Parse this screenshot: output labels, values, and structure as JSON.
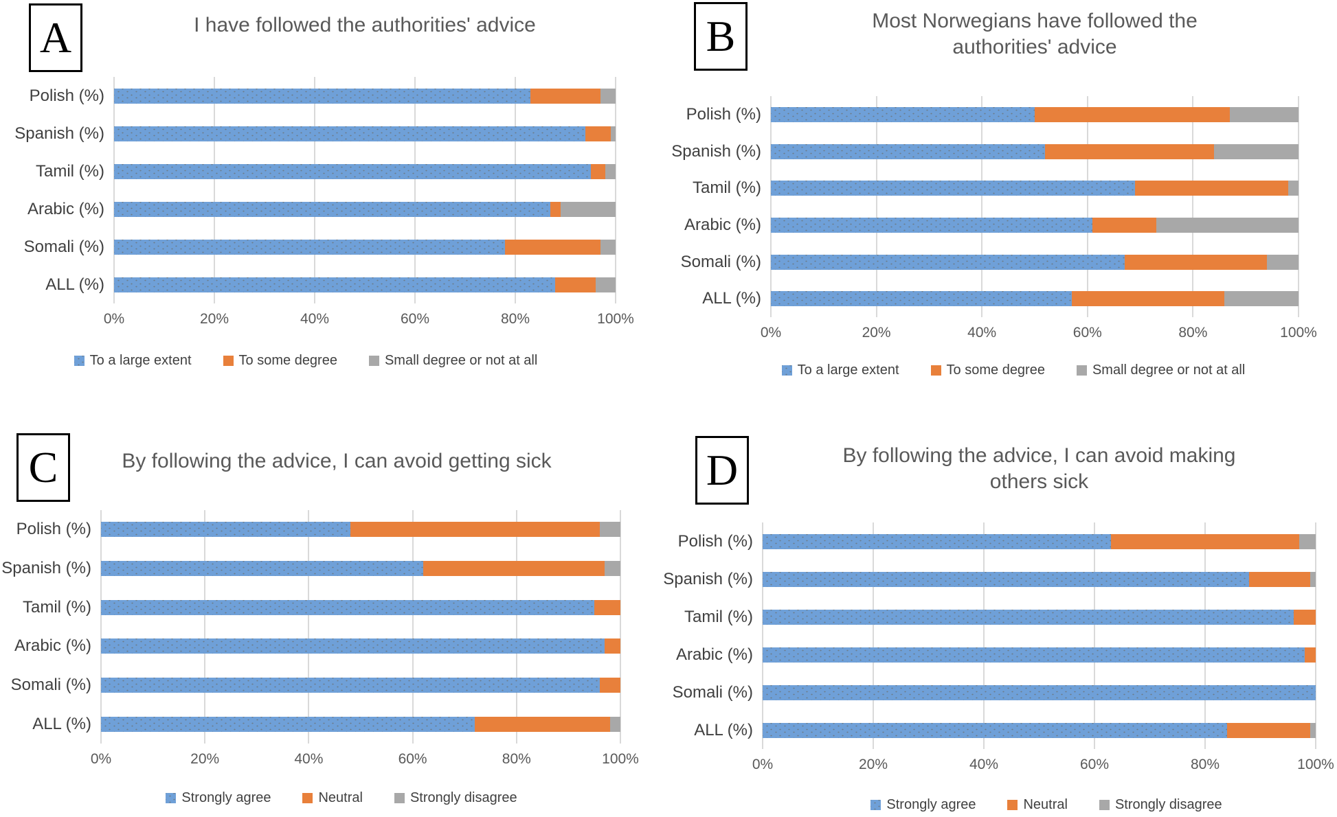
{
  "colors": {
    "blue": "#6FA0D8",
    "orange": "#E8803B",
    "gray": "#A8A8A8",
    "title_text": "#595959",
    "axis_text": "#595959",
    "gridline": "#D9D9D9"
  },
  "chart_data": [
    {
      "panel": "A",
      "type": "bar",
      "stacked": true,
      "orientation": "horizontal",
      "title": "I have followed the authorities' advice",
      "title_lines": [
        "I have followed the authorities' advice"
      ],
      "categories": [
        "Polish  (%)",
        "Spanish  (%)",
        "Tamil  (%)",
        "Arabic (%)",
        "Somali  (%)",
        "ALL  (%)"
      ],
      "series": [
        {
          "name": "To a large extent",
          "color": "blue",
          "values": [
            83,
            94,
            95,
            87,
            78,
            88
          ]
        },
        {
          "name": "To some degree",
          "color": "orange",
          "values": [
            14,
            5,
            3,
            2,
            19,
            8
          ]
        },
        {
          "name": "Small degree or not at all",
          "color": "gray",
          "values": [
            3,
            1,
            2,
            11,
            3,
            4
          ]
        }
      ],
      "xlim": [
        0,
        100
      ],
      "x_ticks": [
        "0%",
        "20%",
        "40%",
        "60%",
        "80%",
        "100%"
      ],
      "grid": true,
      "legend_position": "bottom"
    },
    {
      "panel": "B",
      "type": "bar",
      "stacked": true,
      "orientation": "horizontal",
      "title": "Most Norwegians have followed the authorities' advice",
      "title_lines": [
        "Most Norwegians have followed the",
        "authorities' advice"
      ],
      "categories": [
        "Polish  (%)",
        "Spanish  (%)",
        "Tamil  (%)",
        "Arabic (%)",
        "Somali  (%)",
        "ALL  (%)"
      ],
      "series": [
        {
          "name": "To a large extent",
          "color": "blue",
          "values": [
            50,
            52,
            69,
            61,
            67,
            57
          ]
        },
        {
          "name": "To some degree",
          "color": "orange",
          "values": [
            37,
            32,
            29,
            12,
            27,
            29
          ]
        },
        {
          "name": "Small degree or not at all",
          "color": "gray",
          "values": [
            13,
            16,
            2,
            27,
            6,
            14
          ]
        }
      ],
      "xlim": [
        0,
        100
      ],
      "x_ticks": [
        "0%",
        "20%",
        "40%",
        "60%",
        "80%",
        "100%"
      ],
      "grid": true,
      "legend_position": "bottom"
    },
    {
      "panel": "C",
      "type": "bar",
      "stacked": true,
      "orientation": "horizontal",
      "title": "By following the advice, I can avoid getting sick",
      "title_lines": [
        "By following the advice, I can avoid getting sick"
      ],
      "categories": [
        "Polish  (%)",
        "Spanish  (%)",
        "Tamil  (%)",
        "Arabic (%)",
        "Somali  (%)",
        "ALL  (%)"
      ],
      "series": [
        {
          "name": "Strongly agree",
          "color": "blue",
          "values": [
            48,
            62,
            95,
            97,
            96,
            72
          ]
        },
        {
          "name": "Neutral",
          "color": "orange",
          "values": [
            48,
            35,
            5,
            3,
            4,
            26
          ]
        },
        {
          "name": "Strongly disagree",
          "color": "gray",
          "values": [
            4,
            3,
            0,
            0,
            0,
            2
          ]
        }
      ],
      "xlim": [
        0,
        100
      ],
      "x_ticks": [
        "0%",
        "20%",
        "40%",
        "60%",
        "80%",
        "100%"
      ],
      "grid": true,
      "legend_position": "bottom"
    },
    {
      "panel": "D",
      "type": "bar",
      "stacked": true,
      "orientation": "horizontal",
      "title": "By following the advice, I can avoid making others sick",
      "title_lines": [
        "By following the advice, I can avoid making",
        "others sick"
      ],
      "categories": [
        "Polish  (%)",
        "Spanish  (%)",
        "Tamil  (%)",
        "Arabic (%)",
        "Somali  (%)",
        "ALL  (%)"
      ],
      "series": [
        {
          "name": "Strongly agree",
          "color": "blue",
          "values": [
            63,
            88,
            96,
            98,
            100,
            84
          ]
        },
        {
          "name": "Neutral",
          "color": "orange",
          "values": [
            34,
            11,
            4,
            2,
            0,
            15
          ]
        },
        {
          "name": "Strongly disagree",
          "color": "gray",
          "values": [
            3,
            1,
            0,
            0,
            0,
            1
          ]
        }
      ],
      "xlim": [
        0,
        100
      ],
      "x_ticks": [
        "0%",
        "20%",
        "40%",
        "60%",
        "80%",
        "100%"
      ],
      "grid": true,
      "legend_position": "bottom"
    }
  ]
}
